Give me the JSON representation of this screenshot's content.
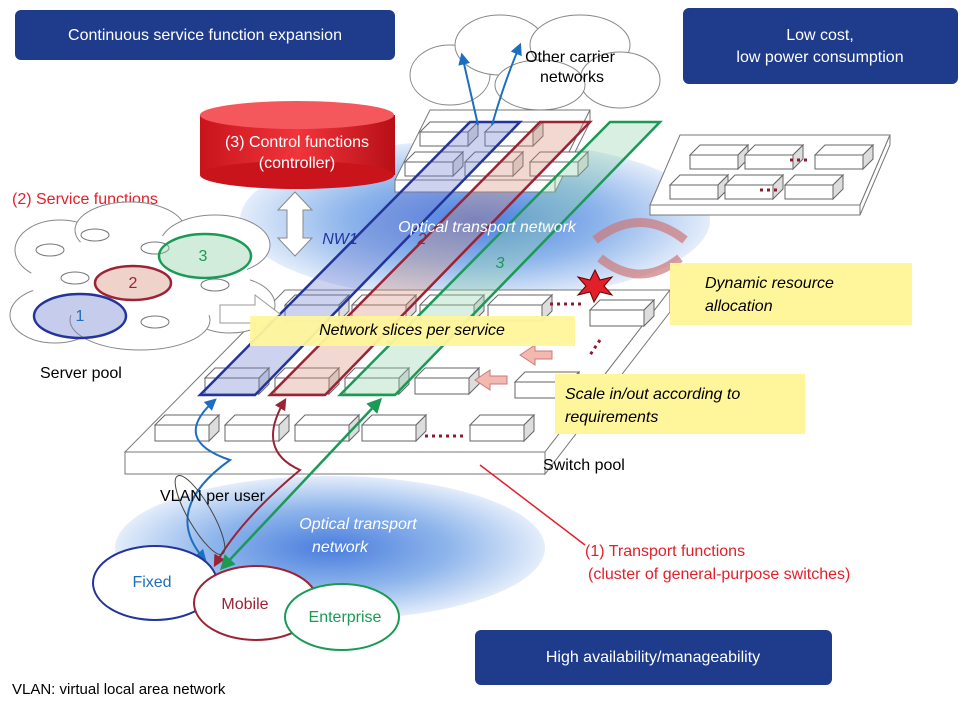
{
  "banners": {
    "expansion": "Continuous service function expansion",
    "cost": [
      "Low cost,",
      "low power consumption"
    ],
    "availability": "High availability/manageability"
  },
  "carrier": [
    "Other carrier",
    "networks"
  ],
  "controller": [
    "(3) Control functions",
    "(controller)"
  ],
  "service_functions": "(2) Service functions",
  "server_pool": {
    "label": "Server pool",
    "slices": [
      "1",
      "2",
      "3"
    ]
  },
  "optical_top": "Optical transport network",
  "slices": [
    "NW1",
    "2",
    "3"
  ],
  "dynamic": [
    "Dynamic resource",
    "allocation"
  ],
  "network_slices": "Network slices per service",
  "scale": [
    "Scale in/out according to",
    "requirements"
  ],
  "switch_pool": "Switch pool",
  "vlan": "VLAN per user",
  "optical_bottom": [
    "Optical transport",
    "network"
  ],
  "transport": [
    "(1) Transport functions",
    "(cluster of general-purpose switches)"
  ],
  "access": [
    "Fixed",
    "Mobile",
    "Enterprise"
  ],
  "footnote": "VLAN: virtual local area network"
}
